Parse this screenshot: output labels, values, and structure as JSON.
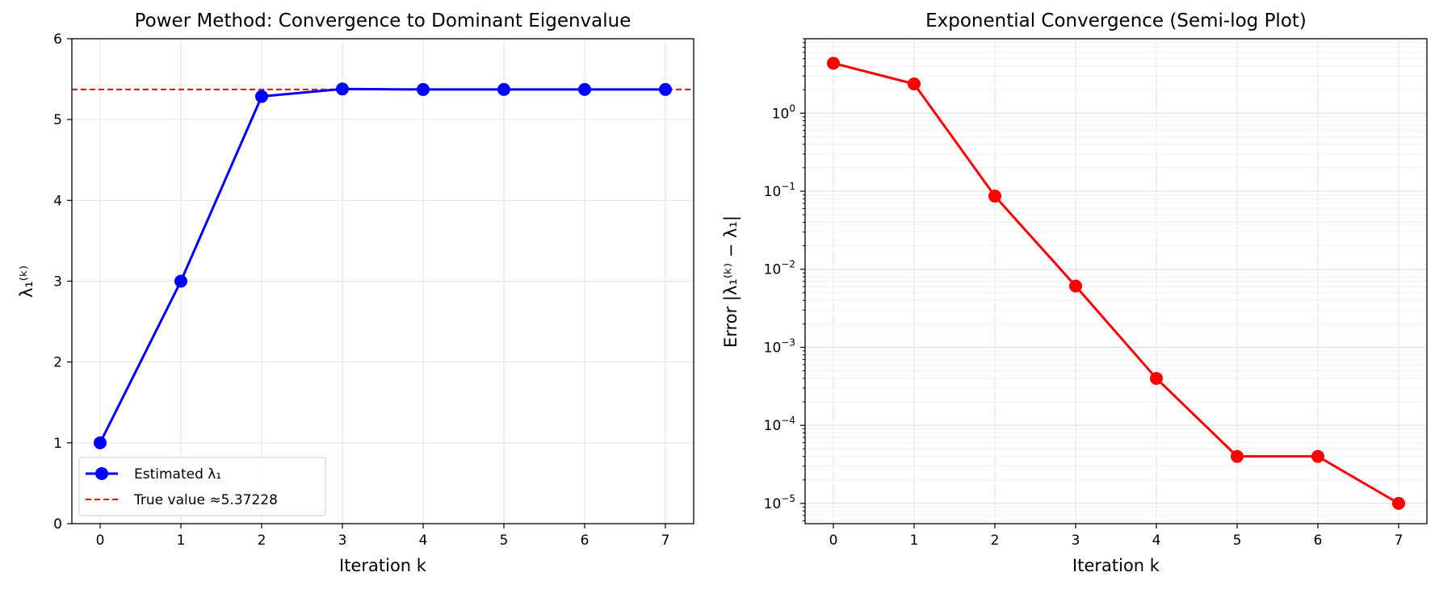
{
  "chart_data": [
    {
      "type": "line",
      "title": "Power Method: Convergence to Dominant Eigenvalue",
      "xlabel": "Iteration k",
      "ylabel": "λ₁⁽ᵏ⁾",
      "x": [
        0,
        1,
        2,
        3,
        4,
        5,
        6,
        7
      ],
      "xticks": [
        "0",
        "1",
        "2",
        "3",
        "4",
        "5",
        "6",
        "7"
      ],
      "yticks": [
        "0",
        "1",
        "2",
        "3",
        "4",
        "5",
        "6"
      ],
      "xlim": [
        -0.35,
        7.35
      ],
      "ylim": [
        0,
        6
      ],
      "grid": true,
      "series": [
        {
          "name": "Estimated λ₁",
          "color": "#0000ff",
          "marker": "circle",
          "values": [
            1.0,
            3.0,
            5.2857,
            5.3784,
            5.3719,
            5.3723,
            5.3723,
            5.3723
          ]
        }
      ],
      "reference_line": {
        "name": "True value ≈5.37228",
        "y": 5.37228,
        "color": "#ff0000",
        "style": "dashed"
      },
      "legend": "lower-left"
    },
    {
      "type": "line",
      "title": "Exponential Convergence (Semi-log Plot)",
      "xlabel": "Iteration k",
      "ylabel": "Error |λ₁⁽ᵏ⁾ − λ₁|",
      "yscale": "log",
      "x": [
        0,
        1,
        2,
        3,
        4,
        5,
        6,
        7
      ],
      "xticks": [
        "0",
        "1",
        "2",
        "3",
        "4",
        "5",
        "6",
        "7"
      ],
      "yticks": [
        {
          "base": "10",
          "exp": "0"
        },
        {
          "base": "10",
          "exp": "−1"
        },
        {
          "base": "10",
          "exp": "−2"
        },
        {
          "base": "10",
          "exp": "−3"
        },
        {
          "base": "10",
          "exp": "−4"
        },
        {
          "base": "10",
          "exp": "−5"
        }
      ],
      "xlim": [
        -0.35,
        7.35
      ],
      "ylim": [
        5.5e-06,
        9.0
      ],
      "grid": true,
      "series": [
        {
          "color": "#ff0000",
          "marker": "circle",
          "values": [
            4.37228,
            2.37228,
            0.0866,
            0.0061,
            0.0004,
            4e-05,
            4e-05,
            1e-05
          ]
        }
      ]
    }
  ]
}
